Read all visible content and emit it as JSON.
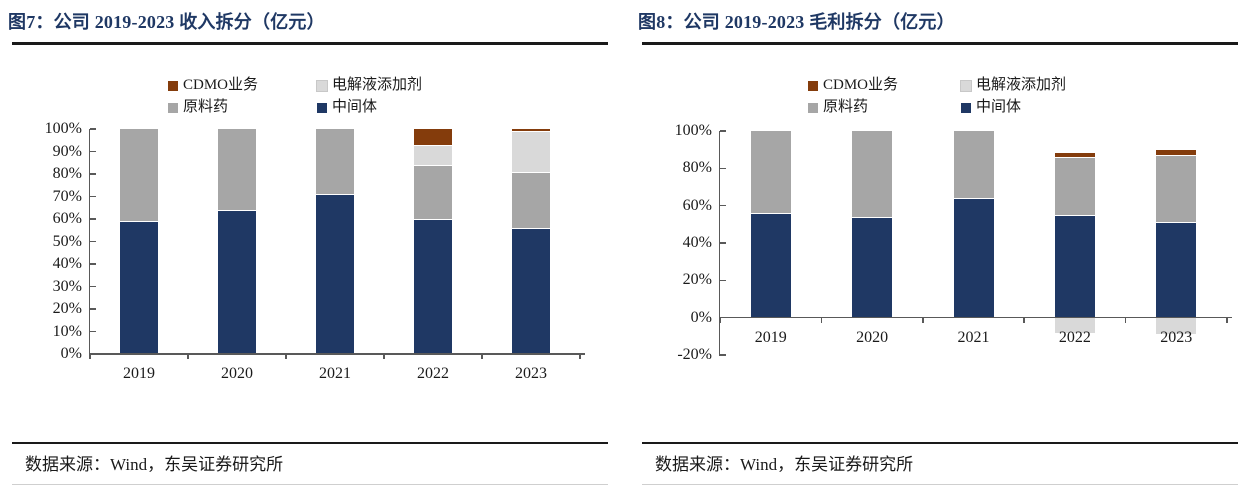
{
  "page": {
    "background": "#FFFFFF"
  },
  "style": {
    "title_color": "#1F3864",
    "axis_color": "#595959",
    "text_color": "#1A1A1A"
  },
  "panels": [
    {
      "source": "数据来源：Wind，东吴证券研究所"
    },
    {
      "source": "数据来源：Wind，东吴证券研究所"
    }
  ],
  "chart_data": [
    {
      "type": "bar",
      "stacked": true,
      "title": "图7：公司 2019-2023 收入拆分（亿元）",
      "categories": [
        "2019",
        "2020",
        "2021",
        "2022",
        "2023"
      ],
      "series": [
        {
          "name": "中间体",
          "color": "#1F3864",
          "values": [
            59,
            64,
            71,
            60,
            56
          ]
        },
        {
          "name": "原料药",
          "color": "#A6A6A6",
          "values": [
            41,
            36,
            29,
            24,
            25
          ]
        },
        {
          "name": "电解液添加剂",
          "color": "#D9D9D9",
          "values": [
            0,
            0,
            0,
            9,
            18
          ]
        },
        {
          "name": "CDMO业务",
          "color": "#843C0C",
          "values": [
            0,
            0,
            0,
            7,
            1
          ]
        }
      ],
      "legend_order": [
        "CDMO业务",
        "电解液添加剂",
        "原料药",
        "中间体"
      ],
      "legend_position": "top-center",
      "xlabel": "",
      "ylabel": "",
      "ylim": [
        0,
        100
      ],
      "ytick_step": 10,
      "ytick_labels": [
        "0%",
        "10%",
        "20%",
        "30%",
        "40%",
        "50%",
        "60%",
        "70%",
        "80%",
        "90%",
        "100%"
      ],
      "grid": false,
      "unit": "percent-of-total"
    },
    {
      "type": "bar",
      "stacked": true,
      "title": "图8：公司 2019-2023 毛利拆分（亿元）",
      "categories": [
        "2019",
        "2020",
        "2021",
        "2022",
        "2023"
      ],
      "series": [
        {
          "name": "中间体",
          "color": "#1F3864",
          "values": [
            56,
            54,
            64,
            55,
            51
          ]
        },
        {
          "name": "原料药",
          "color": "#A6A6A6",
          "values": [
            44,
            46,
            36,
            31,
            36
          ]
        },
        {
          "name": "电解液添加剂",
          "color": "#D9D9D9",
          "values": [
            0,
            0,
            0,
            -8,
            -9
          ]
        },
        {
          "name": "CDMO业务",
          "color": "#843C0C",
          "values": [
            0,
            0,
            0,
            2,
            3
          ]
        }
      ],
      "legend_order": [
        "CDMO业务",
        "电解液添加剂",
        "原料药",
        "中间体"
      ],
      "legend_position": "top-center",
      "xlabel": "",
      "ylabel": "",
      "ylim": [
        -20,
        100
      ],
      "ytick_step": 20,
      "ytick_labels": [
        "-20%",
        "0%",
        "20%",
        "40%",
        "60%",
        "80%",
        "100%"
      ],
      "grid": false,
      "unit": "percent-of-total"
    }
  ]
}
